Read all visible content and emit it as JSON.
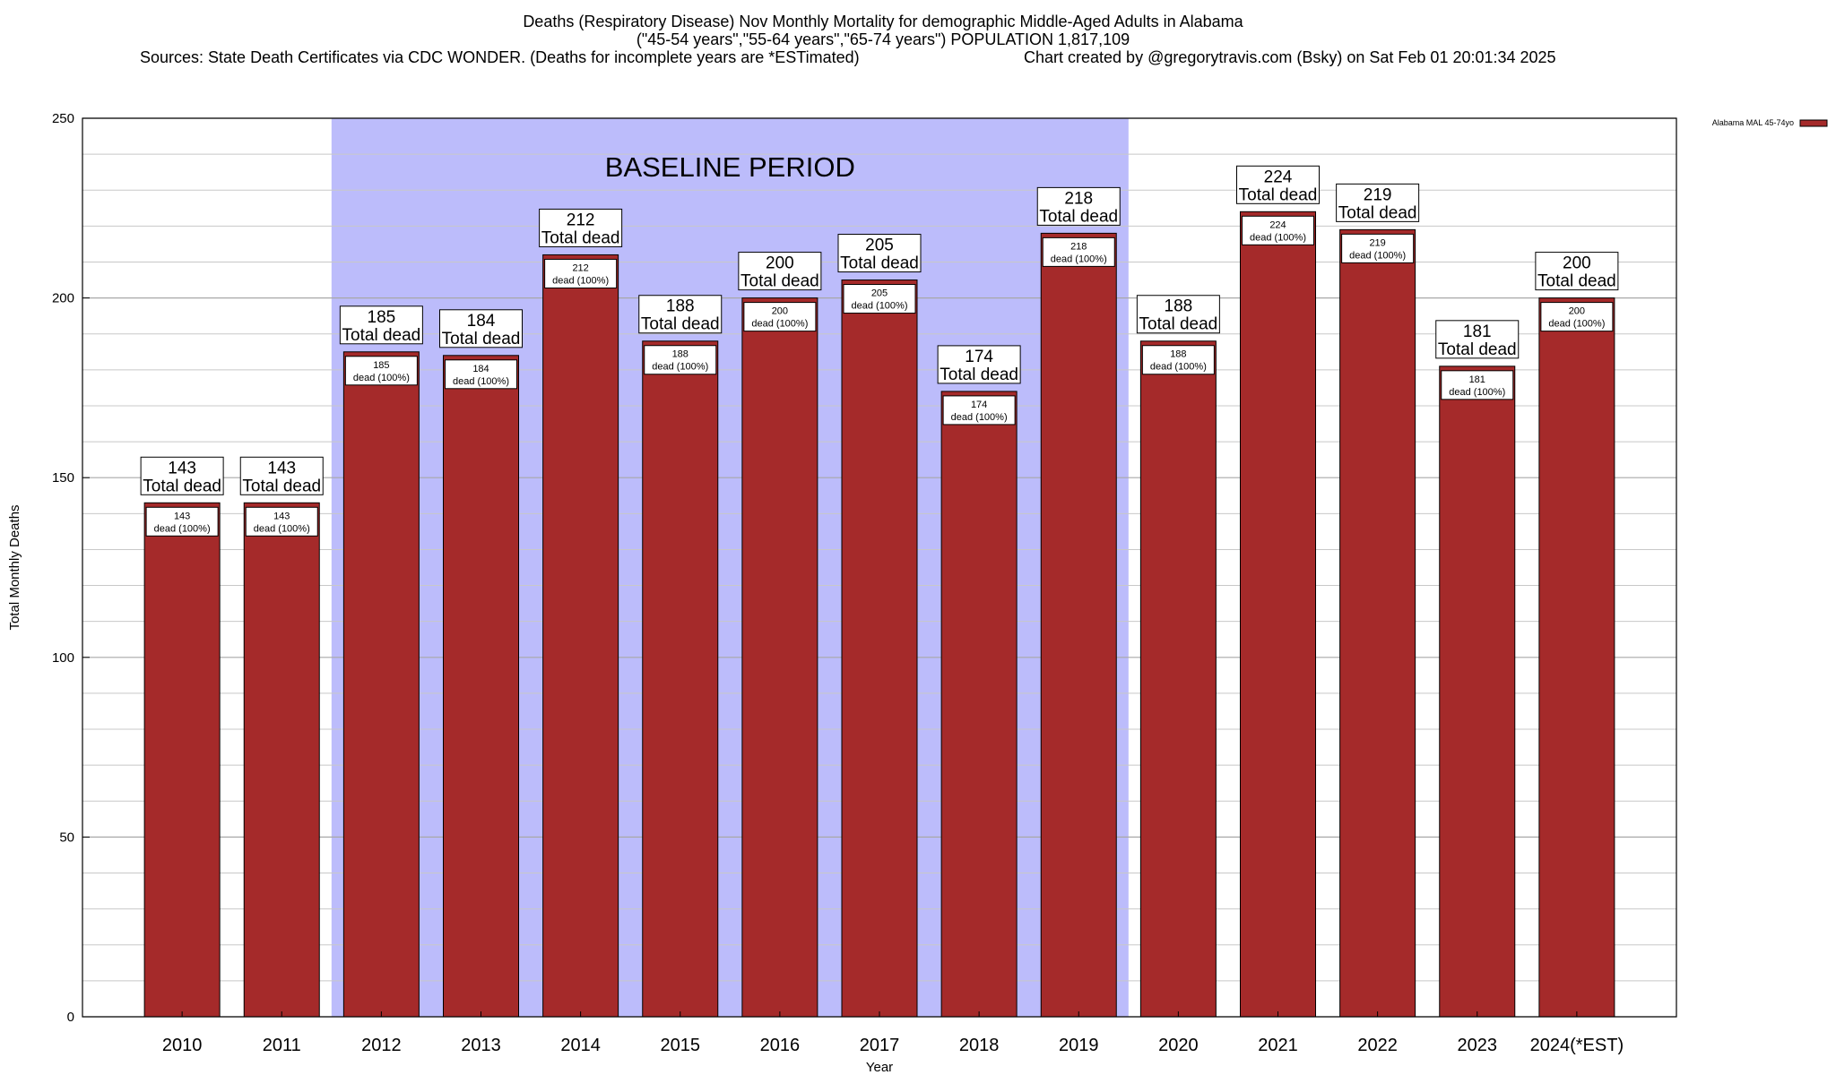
{
  "chart_data": {
    "type": "bar",
    "title_lines": [
      "Deaths (Respiratory Disease) Nov Monthly Mortality for demographic Middle-Aged Adults in Alabama",
      "(\"45-54 years\",\"55-64 years\",\"65-74 years\") POPULATION 1,817,109"
    ],
    "sources": "Sources: State Death Certificates via CDC WONDER. (Deaths for incomplete years are *ESTimated)",
    "credit": "Chart created by @gregorytravis.com (Bsky) on Sat Feb 01 20:01:34 2025",
    "xlabel": "Year",
    "ylabel": "Total Monthly Deaths",
    "ylim": [
      0,
      250
    ],
    "yticks": [
      0,
      50,
      100,
      150,
      200,
      250
    ],
    "categories": [
      "2010",
      "2011",
      "2012",
      "2013",
      "2014",
      "2015",
      "2016",
      "2017",
      "2018",
      "2019",
      "2020",
      "2021",
      "2022",
      "2023",
      "2024(*EST)"
    ],
    "series": [
      {
        "name": "Alabama MAL 45-74yo",
        "values": [
          143,
          143,
          185,
          184,
          212,
          188,
          200,
          205,
          174,
          218,
          188,
          224,
          219,
          181,
          200
        ]
      }
    ],
    "total_label_suffix": "Total dead",
    "inner_label_suffix": "dead (100%)",
    "baseline": {
      "label": "BASELINE PERIOD",
      "start": "2012",
      "end": "2019"
    },
    "legend_position": "top-right",
    "grid": true,
    "colors": {
      "bar": "#a52a2a",
      "baseline_shade": "#bcbcfb",
      "grid": "#c8c8c8"
    }
  }
}
